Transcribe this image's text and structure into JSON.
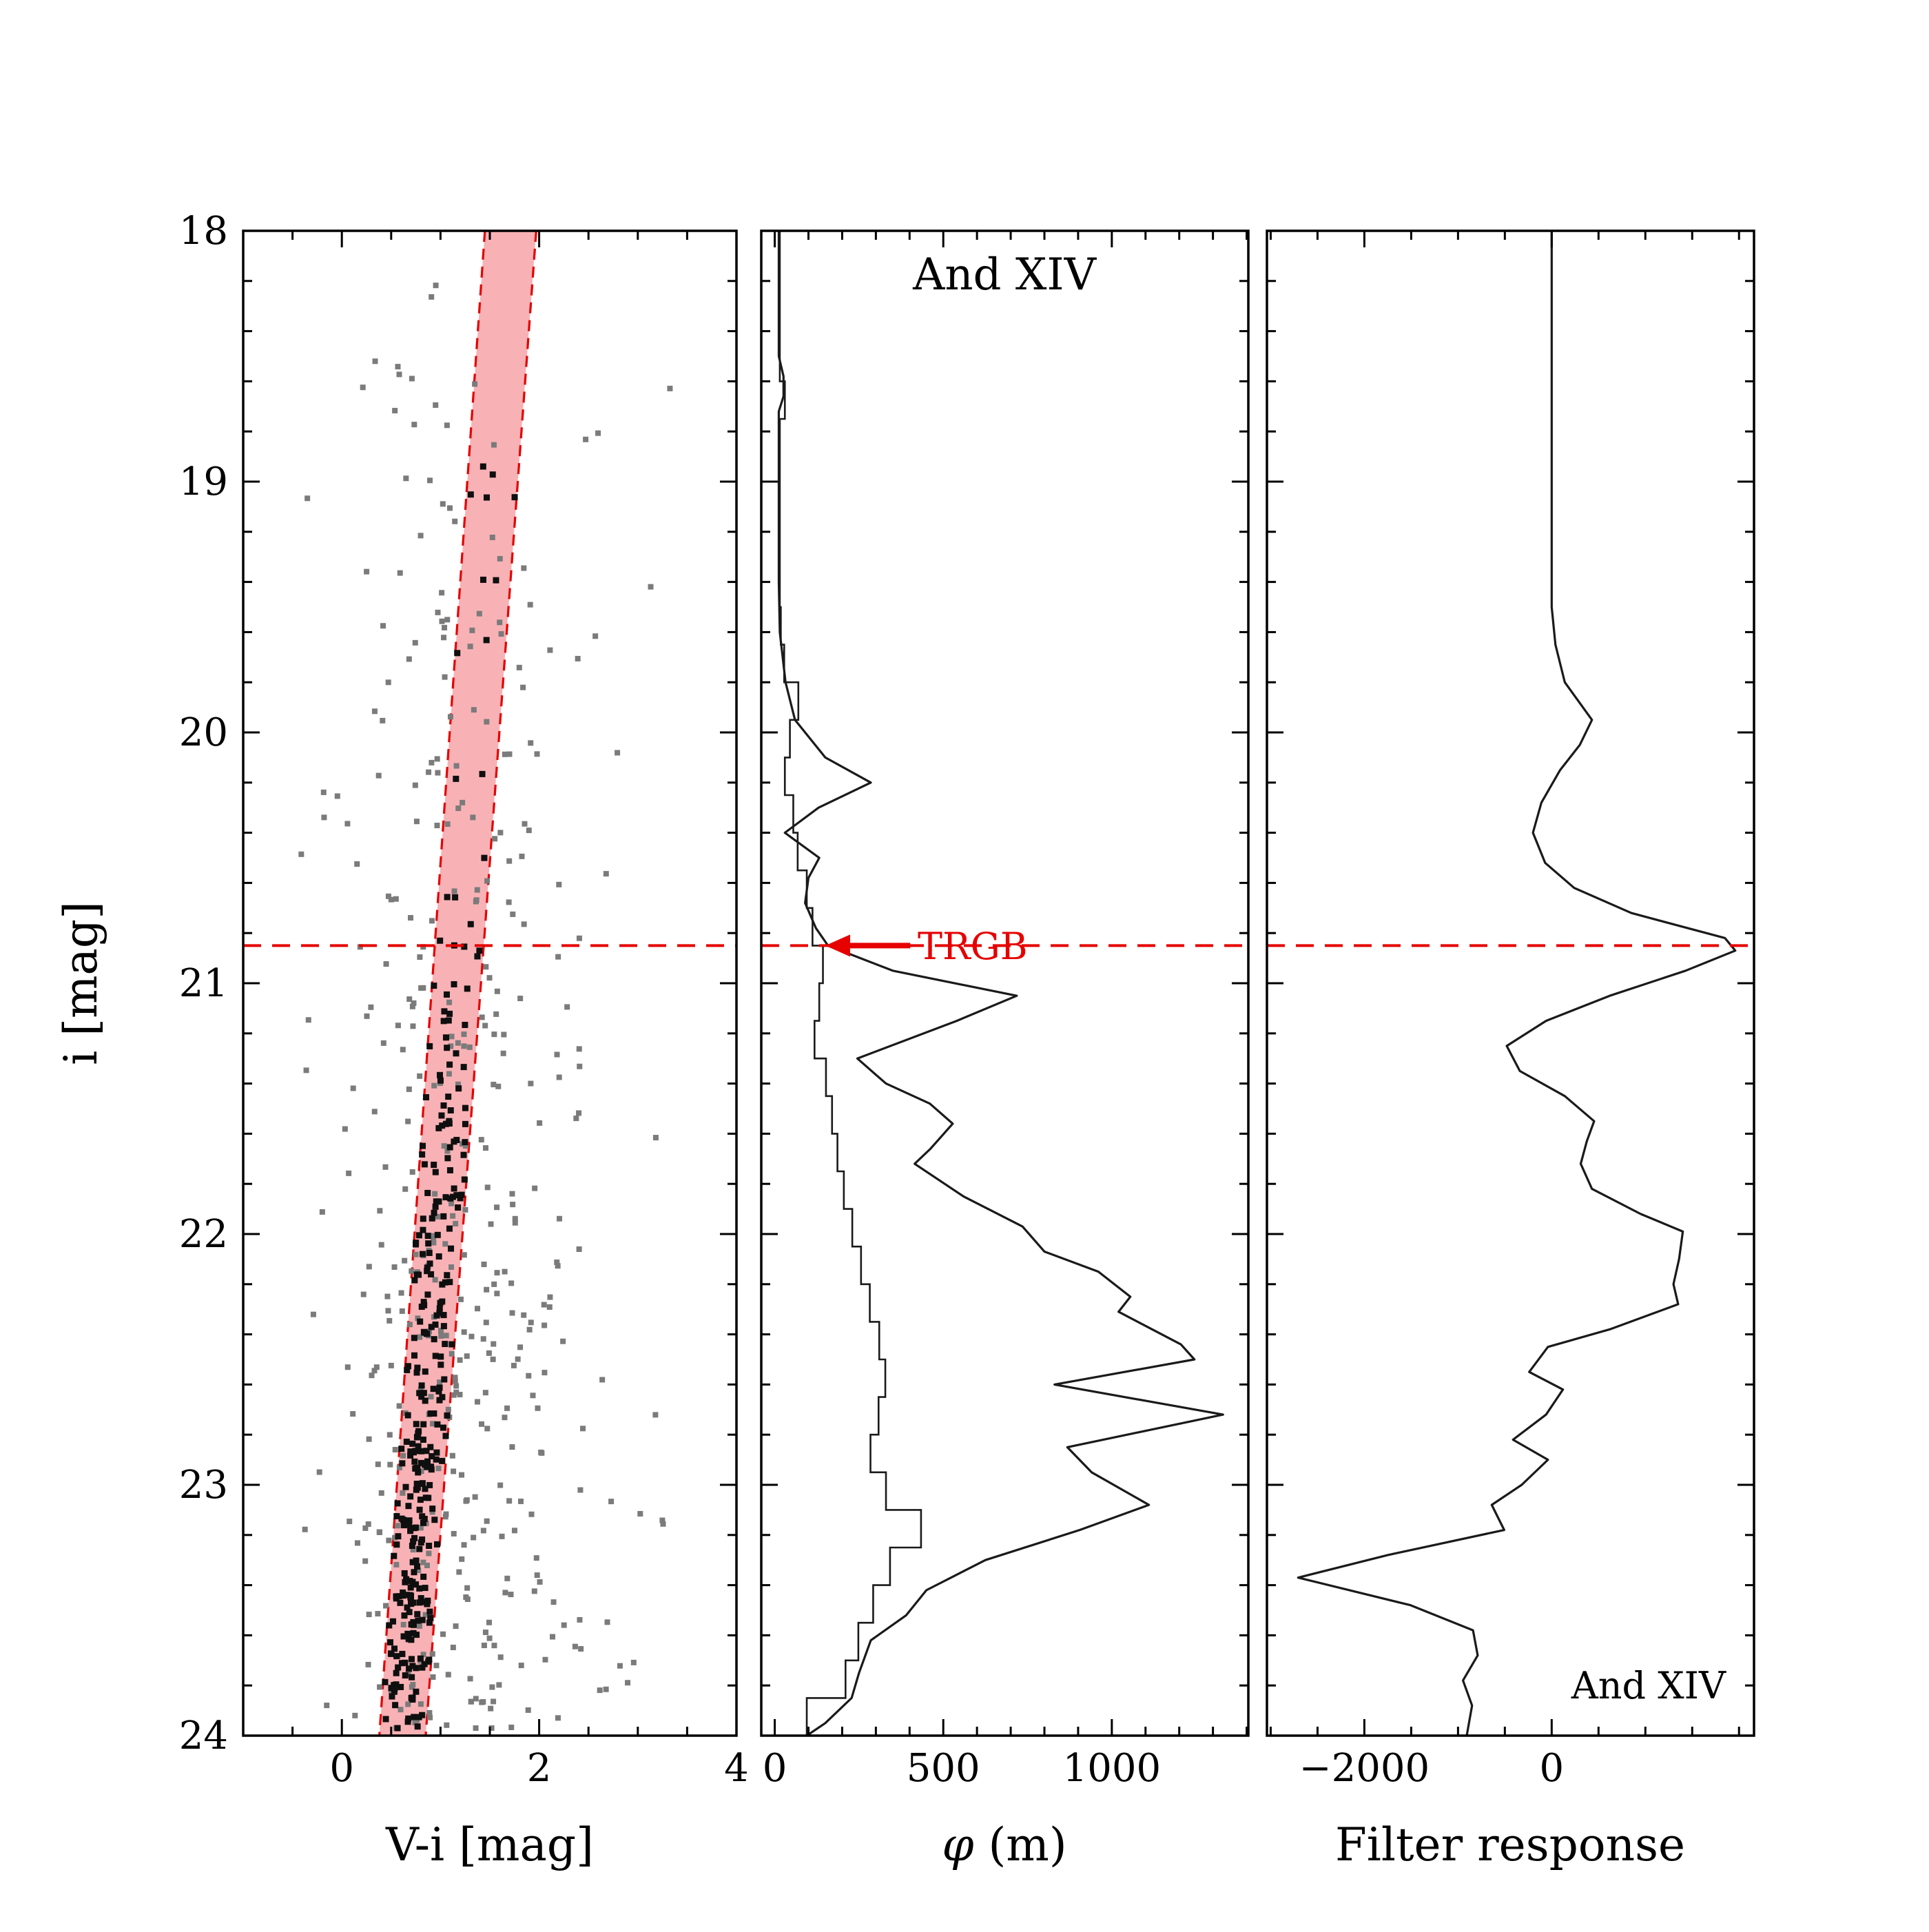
{
  "figure": {
    "background": "#ffffff",
    "accent_red": "#e60000",
    "curve_color": "#1a1a1a",
    "ylabel": "i [mag]",
    "ylim": [
      18,
      24
    ],
    "yticks": [
      18,
      19,
      20,
      21,
      22,
      23,
      24
    ],
    "ytick_labels": [
      "18",
      "19",
      "20",
      "21",
      "22",
      "23",
      "24"
    ],
    "trgb_i": 20.85
  },
  "chart_data": [
    {
      "type": "scatter",
      "name": "color-magnitude-diagram",
      "xlabel": "V-i [mag]",
      "xlim": [
        -1,
        4
      ],
      "xticks": [
        0,
        2,
        4
      ],
      "xtick_labels": [
        "0",
        "2",
        "4"
      ],
      "x_minor_step": 0.5,
      "ylim": [
        24,
        18
      ],
      "selection_band": {
        "i_top": 18,
        "i_bottom": 24,
        "left_top": 1.45,
        "right_top": 1.97,
        "left_bottom": 0.38,
        "right_bottom": 0.85,
        "fill": "#f8b2b6",
        "edge": "#e60000"
      },
      "trgb_line_i": 20.85,
      "scatter_model": {
        "seed": 20250915,
        "field": {
          "count": 430,
          "color": "#7b7b7b",
          "size": 8
        },
        "members": {
          "count": 320,
          "bright_count": 12,
          "color": "#0f0f0f",
          "size": 9
        }
      }
    },
    {
      "type": "line",
      "name": "luminosity-function",
      "title": "And XIV",
      "xlabel_phi": "φ",
      "xlabel_rest": " (m)",
      "xlim": [
        -40,
        1405
      ],
      "xticks": [
        0,
        500,
        1000
      ],
      "xtick_labels": [
        "0",
        "500",
        "1000"
      ],
      "x_minor_step": 100,
      "trgb_annotation": {
        "label": "TRGB",
        "i": 20.85,
        "arrow_tip_phi": 150,
        "arrow_tail_phi": 402
      },
      "smoothed_lf": [
        [
          18.0,
          12
        ],
        [
          18.5,
          12
        ],
        [
          18.58,
          26
        ],
        [
          18.66,
          26
        ],
        [
          18.72,
          12
        ],
        [
          19.4,
          12
        ],
        [
          19.6,
          15
        ],
        [
          19.8,
          32
        ],
        [
          19.95,
          60
        ],
        [
          20.1,
          150
        ],
        [
          20.2,
          285
        ],
        [
          20.3,
          130
        ],
        [
          20.4,
          30
        ],
        [
          20.5,
          132
        ],
        [
          20.58,
          100
        ],
        [
          20.68,
          90
        ],
        [
          20.78,
          122
        ],
        [
          20.85,
          158
        ],
        [
          20.95,
          350
        ],
        [
          21.05,
          718
        ],
        [
          21.15,
          540
        ],
        [
          21.3,
          245
        ],
        [
          21.4,
          330
        ],
        [
          21.48,
          460
        ],
        [
          21.56,
          528
        ],
        [
          21.66,
          462
        ],
        [
          21.72,
          415
        ],
        [
          21.85,
          560
        ],
        [
          21.97,
          735
        ],
        [
          22.07,
          800
        ],
        [
          22.15,
          960
        ],
        [
          22.25,
          1055
        ],
        [
          22.31,
          1020
        ],
        [
          22.44,
          1205
        ],
        [
          22.5,
          1245
        ],
        [
          22.6,
          830
        ],
        [
          22.72,
          1330
        ],
        [
          22.85,
          868
        ],
        [
          22.95,
          940
        ],
        [
          23.08,
          1110
        ],
        [
          23.18,
          905
        ],
        [
          23.3,
          625
        ],
        [
          23.42,
          450
        ],
        [
          23.52,
          390
        ],
        [
          23.62,
          285
        ],
        [
          23.75,
          250
        ],
        [
          23.85,
          228
        ],
        [
          23.95,
          150
        ],
        [
          24.0,
          95
        ]
      ],
      "histogram_bins": [
        [
          18.0,
          18.15,
          15
        ],
        [
          18.15,
          18.3,
          15
        ],
        [
          18.3,
          18.45,
          15
        ],
        [
          18.45,
          18.6,
          15
        ],
        [
          18.6,
          18.75,
          30
        ],
        [
          18.75,
          18.9,
          15
        ],
        [
          18.9,
          19.05,
          15
        ],
        [
          19.05,
          19.2,
          15
        ],
        [
          19.2,
          19.35,
          15
        ],
        [
          19.35,
          19.5,
          15
        ],
        [
          19.5,
          19.65,
          18
        ],
        [
          19.65,
          19.8,
          28
        ],
        [
          19.8,
          19.95,
          70
        ],
        [
          19.95,
          20.1,
          45
        ],
        [
          20.1,
          20.25,
          30
        ],
        [
          20.25,
          20.4,
          55
        ],
        [
          20.4,
          20.55,
          68
        ],
        [
          20.55,
          20.7,
          95
        ],
        [
          20.7,
          20.85,
          112
        ],
        [
          20.85,
          21.0,
          143
        ],
        [
          21.0,
          21.15,
          132
        ],
        [
          21.15,
          21.3,
          118
        ],
        [
          21.3,
          21.45,
          152
        ],
        [
          21.45,
          21.6,
          170
        ],
        [
          21.6,
          21.75,
          186
        ],
        [
          21.75,
          21.9,
          205
        ],
        [
          21.9,
          22.05,
          230
        ],
        [
          22.05,
          22.2,
          256
        ],
        [
          22.2,
          22.35,
          282
        ],
        [
          22.35,
          22.5,
          310
        ],
        [
          22.5,
          22.65,
          328
        ],
        [
          22.65,
          22.8,
          308
        ],
        [
          22.8,
          22.95,
          284
        ],
        [
          22.95,
          23.1,
          330
        ],
        [
          23.1,
          23.25,
          434
        ],
        [
          23.25,
          23.4,
          342
        ],
        [
          23.4,
          23.55,
          292
        ],
        [
          23.55,
          23.7,
          248
        ],
        [
          23.7,
          23.85,
          210
        ],
        [
          23.85,
          24.0,
          95
        ]
      ]
    },
    {
      "type": "line",
      "name": "filter-response",
      "xlabel": "Filter response",
      "corner_label": "And XIV",
      "xlim": [
        -3040,
        2160
      ],
      "xticks": [
        -2000,
        0
      ],
      "xtick_labels": [
        "−2000",
        "0"
      ],
      "x_minor_step": 500,
      "trgb_line_i": 20.85,
      "response": [
        [
          18.0,
          0
        ],
        [
          19.5,
          0
        ],
        [
          19.65,
          40
        ],
        [
          19.8,
          140
        ],
        [
          19.95,
          430
        ],
        [
          20.05,
          300
        ],
        [
          20.15,
          90
        ],
        [
          20.28,
          -110
        ],
        [
          20.4,
          -200
        ],
        [
          20.52,
          -70
        ],
        [
          20.62,
          240
        ],
        [
          20.72,
          850
        ],
        [
          20.82,
          1850
        ],
        [
          20.87,
          1960
        ],
        [
          20.95,
          1430
        ],
        [
          21.05,
          620
        ],
        [
          21.15,
          -60
        ],
        [
          21.25,
          -480
        ],
        [
          21.35,
          -340
        ],
        [
          21.45,
          140
        ],
        [
          21.55,
          453
        ],
        [
          21.63,
          375
        ],
        [
          21.72,
          310
        ],
        [
          21.82,
          430
        ],
        [
          21.92,
          950
        ],
        [
          21.99,
          1400
        ],
        [
          22.1,
          1360
        ],
        [
          22.2,
          1300
        ],
        [
          22.28,
          1350
        ],
        [
          22.38,
          620
        ],
        [
          22.45,
          -40
        ],
        [
          22.55,
          -240
        ],
        [
          22.62,
          120
        ],
        [
          22.72,
          -60
        ],
        [
          22.82,
          -413
        ],
        [
          22.9,
          -40
        ],
        [
          23.0,
          -320
        ],
        [
          23.08,
          -640
        ],
        [
          23.18,
          -507
        ],
        [
          23.28,
          -1750
        ],
        [
          23.37,
          -2707
        ],
        [
          23.48,
          -1507
        ],
        [
          23.58,
          -840
        ],
        [
          23.68,
          -790
        ],
        [
          23.78,
          -947
        ],
        [
          23.88,
          -850
        ],
        [
          24.0,
          -907
        ]
      ]
    }
  ]
}
